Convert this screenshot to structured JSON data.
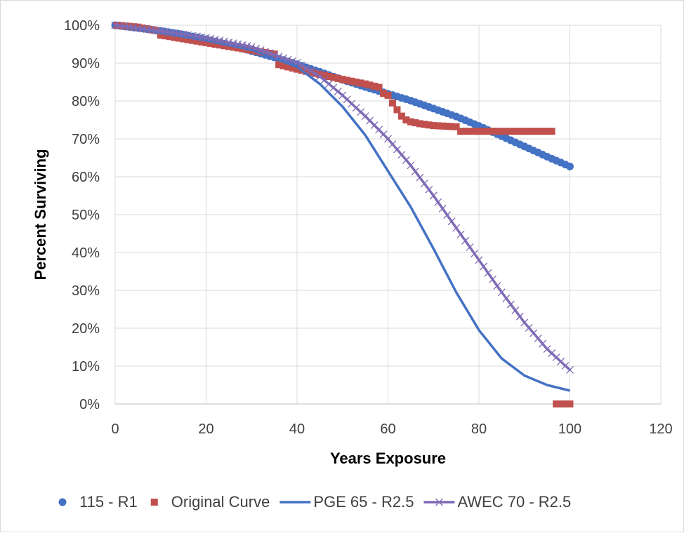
{
  "chart_data": {
    "type": "line",
    "title": "",
    "xlabel": "Years Exposure",
    "ylabel": "Percent Surviving",
    "xlim": [
      0,
      120
    ],
    "ylim": [
      0,
      100
    ],
    "x_ticks": [
      "0",
      "20",
      "40",
      "60",
      "80",
      "100",
      "120"
    ],
    "y_ticks": [
      "0%",
      "10%",
      "20%",
      "30%",
      "40%",
      "50%",
      "60%",
      "70%",
      "80%",
      "90%",
      "100%"
    ],
    "grid": true,
    "legend_position": "bottom",
    "series": [
      {
        "name": "115 - R1",
        "color": "#4472C4",
        "marker": "circle",
        "line": false,
        "x": [
          0,
          5,
          10,
          15,
          20,
          25,
          30,
          35,
          40,
          45,
          50,
          55,
          60,
          65,
          70,
          75,
          80,
          85,
          90,
          95,
          100
        ],
        "y": [
          100,
          99.3,
          98.5,
          97.5,
          96.3,
          94.8,
          93.2,
          91.5,
          89.7,
          87.7,
          85.6,
          83.7,
          81.9,
          80.1,
          78.0,
          75.9,
          73.4,
          70.7,
          68.0,
          65.3,
          62.7
        ]
      },
      {
        "name": "Original Curve",
        "color": "#C0504D",
        "marker": "square",
        "line": false,
        "x": [
          0.5,
          5,
          9,
          10,
          15,
          20,
          25,
          30,
          35,
          36,
          40,
          45,
          50,
          55,
          58,
          59,
          60,
          61,
          62,
          63,
          64,
          65,
          67,
          70,
          75,
          76,
          80,
          85,
          90,
          96,
          97,
          98,
          99,
          100
        ],
        "y": [
          100,
          99.5,
          98.6,
          97.4,
          96.4,
          95.4,
          94.4,
          93.4,
          92.4,
          89.6,
          88.4,
          87.0,
          85.7,
          84.5,
          83.6,
          82.0,
          81.5,
          79.5,
          77.7,
          76.0,
          75.0,
          74.5,
          74.0,
          73.5,
          73.2,
          72.0,
          72.0,
          72.0,
          72.0,
          72.0,
          0,
          0,
          0,
          0
        ]
      },
      {
        "name": "PGE 65 - R2.5",
        "color": "#4472C4",
        "marker": "none",
        "line": true,
        "x": [
          0,
          10,
          20,
          30,
          40,
          45,
          50,
          55,
          60,
          65,
          70,
          75,
          80,
          85,
          90,
          95,
          100
        ],
        "y": [
          100,
          98,
          96,
          93.5,
          89,
          84.5,
          78.5,
          71,
          61.5,
          52,
          41,
          29.5,
          19.5,
          12,
          7.5,
          5,
          3.5
        ]
      },
      {
        "name": "AWEC 70 - R2.5",
        "color": "#7F6BB5",
        "marker": "x",
        "line": true,
        "x": [
          0,
          10,
          20,
          30,
          40,
          45,
          50,
          55,
          60,
          65,
          70,
          75,
          80,
          85,
          90,
          95,
          100
        ],
        "y": [
          100,
          98.5,
          96.7,
          94.3,
          90.1,
          86.5,
          81.5,
          76,
          70,
          63,
          55,
          46.5,
          38,
          29.5,
          21.5,
          14.5,
          9
        ]
      }
    ]
  }
}
